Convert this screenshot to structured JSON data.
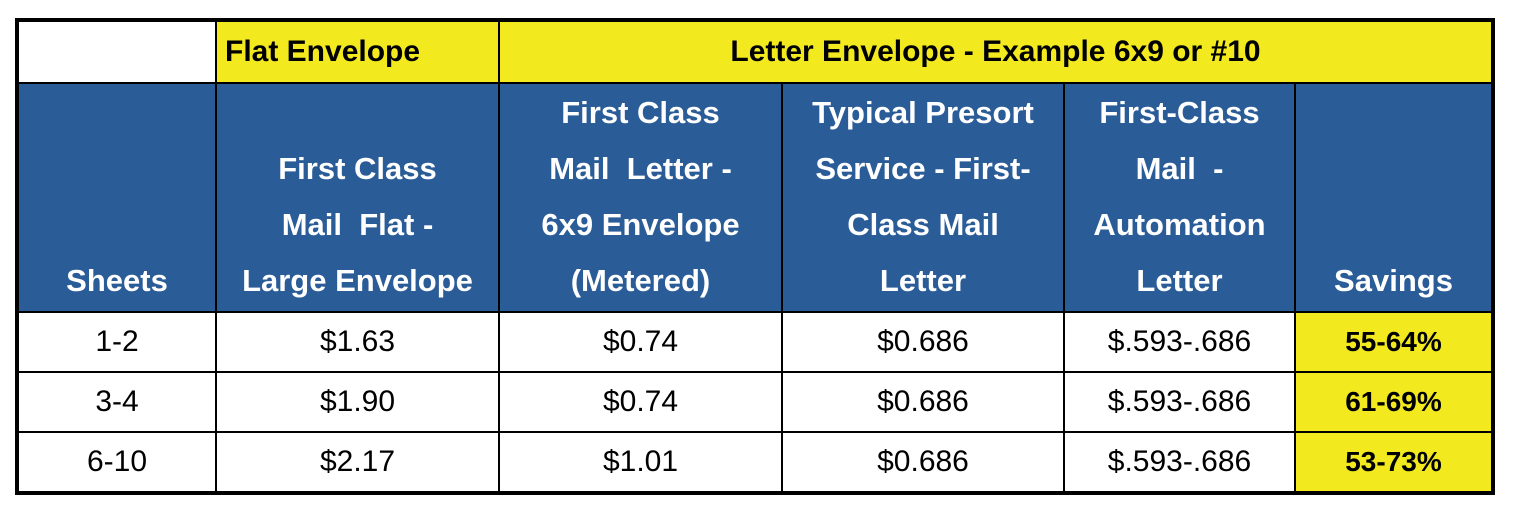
{
  "table": {
    "group_header": [
      "Flat Envelope",
      "Letter Envelope - Example 6x9 or #10"
    ],
    "columns": [
      [
        "Sheets"
      ],
      [
        "First Class",
        "Mail  Flat -",
        "Large Envelope"
      ],
      [
        "First Class",
        "Mail  Letter -",
        "6x9 Envelope",
        "(Metered)"
      ],
      [
        "Typical Presort",
        "Service - First-",
        "Class Mail",
        "Letter"
      ],
      [
        "First-Class",
        "Mail  -",
        "Automation",
        "Letter"
      ],
      [
        "Savings"
      ]
    ],
    "rows": [
      [
        "1-2",
        "$1.63",
        "$0.74",
        "$0.686",
        "$.593-.686",
        "55-64%"
      ],
      [
        "3-4",
        "$1.90",
        "$0.74",
        "$0.686",
        "$.593-.686",
        "61-69%"
      ],
      [
        "6-10",
        "$2.17",
        "$1.01",
        "$0.686",
        "$.593-.686",
        "53-73%"
      ]
    ]
  }
}
